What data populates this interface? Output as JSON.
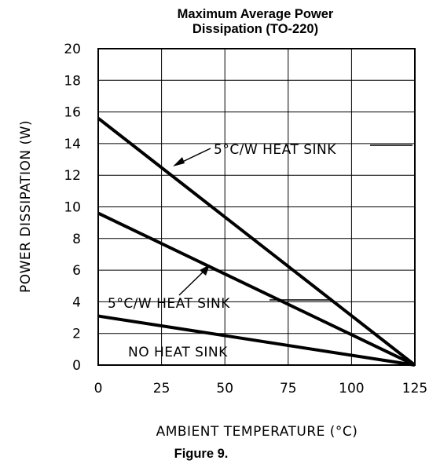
{
  "chart_data": {
    "type": "line",
    "title": [
      "Maximum Average Power",
      "Dissipation (TO-220)"
    ],
    "xlabel": "AMBIENT TEMPERATURE (°C)",
    "ylabel": "POWER DISSIPATION (W)",
    "xlim": [
      0,
      125
    ],
    "ylim": [
      0,
      20
    ],
    "xticks": [
      0,
      25,
      50,
      75,
      100,
      125
    ],
    "yticks": [
      0,
      2,
      4,
      6,
      8,
      10,
      12,
      14,
      16,
      18,
      20
    ],
    "grid": true,
    "series": [
      {
        "label": "5°C/W HEAT SINK",
        "x": [
          0,
          125
        ],
        "y": [
          15.6,
          0
        ]
      },
      {
        "label": "5°C/W HEAT SINK",
        "x": [
          0,
          125
        ],
        "y": [
          9.6,
          0
        ]
      },
      {
        "label": "NO HEAT SINK",
        "x": [
          0,
          125
        ],
        "y": [
          3.1,
          0
        ]
      }
    ]
  },
  "caption": "Figure 9."
}
